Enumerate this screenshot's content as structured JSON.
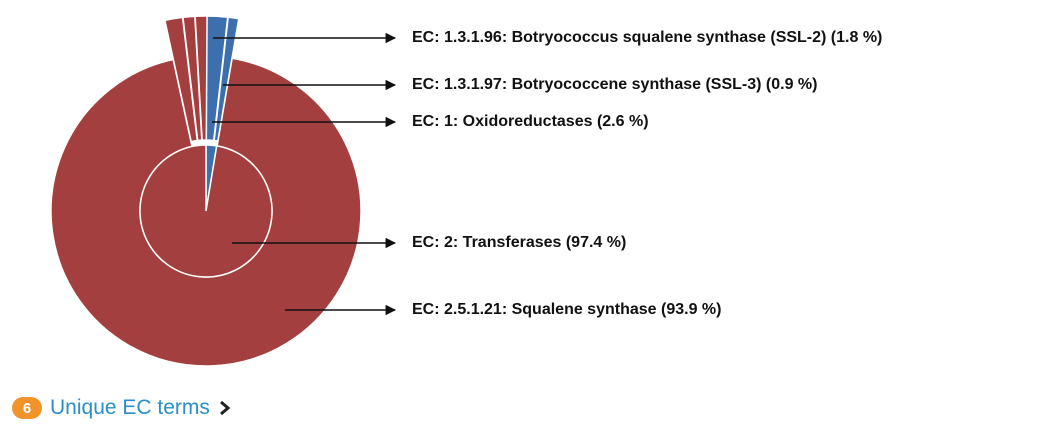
{
  "chart_data": {
    "type": "sunburst",
    "inner": [
      {
        "label": "EC: 1: Oxidoreductases (2.6 %)",
        "value": 2.6,
        "color": "#3d6fae"
      },
      {
        "label": "EC: 2: Transferases (97.4 %)",
        "value": 97.4,
        "color": "#a43f3f"
      }
    ],
    "outer": [
      {
        "label": "EC: 1.3.1.96: Botryococcus squalene synthase (SSL-2) (1.8 %)",
        "value": 1.8,
        "color": "#3d6fae"
      },
      {
        "label": "EC: 1.3.1.97: Botryococcene synthase (SSL-3) (0.9 %)",
        "value": 0.9,
        "color": "#3d6fae"
      },
      {
        "label": "EC: 2.5.1.21: Squalene synthase (93.9 %)",
        "value": 93.9,
        "color": "#a43f3f"
      },
      {
        "label": null,
        "value": 1.5,
        "color": "#a43f3f"
      },
      {
        "label": null,
        "value": 1.0,
        "color": "#a43f3f"
      },
      {
        "label": null,
        "value": 1.0,
        "color": "#a43f3f"
      }
    ]
  },
  "footer": {
    "count": "6",
    "text": "Unique EC terms"
  }
}
